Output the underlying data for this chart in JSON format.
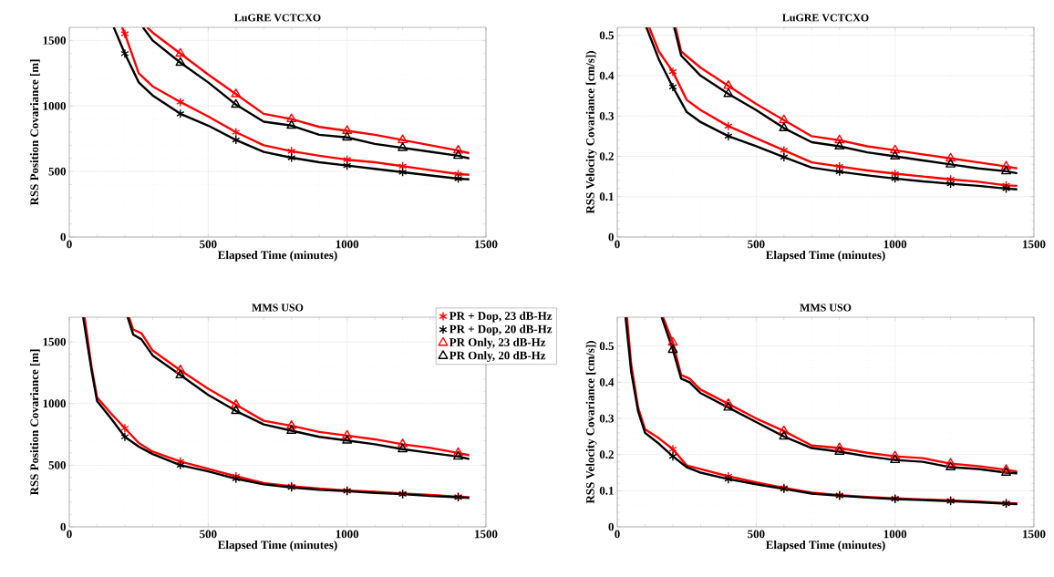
{
  "chart_data": [
    {
      "type": "line",
      "title": "LuGRE VCTCXO",
      "xlabel": "Elapsed Time (minutes)",
      "ylabel": "RSS Position Covariance [m]",
      "xlim": [
        0,
        1500
      ],
      "xticks": [
        0,
        500,
        1000,
        1500
      ],
      "ylim": [
        0,
        1600
      ],
      "yticks": [
        0,
        500,
        1000,
        1500
      ],
      "grid": true,
      "line_style": "solid",
      "series": [
        {
          "color": "#ff0000",
          "x": [
            190,
            200,
            250,
            300,
            400,
            500,
            600,
            700,
            800,
            900,
            1000,
            1100,
            1200,
            1300,
            1400,
            1440
          ],
          "values": [
            1600,
            1550,
            1250,
            1150,
            1030,
            920,
            800,
            700,
            655,
            620,
            590,
            570,
            540,
            510,
            480,
            475
          ]
        },
        {
          "color": "#000000",
          "x": [
            160,
            200,
            250,
            300,
            400,
            500,
            600,
            700,
            800,
            900,
            1000,
            1100,
            1200,
            1300,
            1400,
            1440
          ],
          "values": [
            1600,
            1400,
            1180,
            1080,
            940,
            850,
            740,
            650,
            605,
            570,
            545,
            520,
            495,
            470,
            445,
            440
          ]
        },
        {
          "color": "#ff0000",
          "x": [
            280,
            300,
            400,
            500,
            600,
            700,
            800,
            900,
            1000,
            1100,
            1200,
            1300,
            1400,
            1440
          ],
          "values": [
            1600,
            1560,
            1400,
            1240,
            1090,
            940,
            900,
            840,
            810,
            780,
            740,
            700,
            660,
            640
          ]
        },
        {
          "color": "#000000",
          "x": [
            265,
            300,
            400,
            500,
            600,
            700,
            800,
            900,
            1000,
            1100,
            1200,
            1300,
            1400,
            1440
          ],
          "values": [
            1600,
            1500,
            1330,
            1180,
            1010,
            880,
            850,
            780,
            760,
            710,
            680,
            650,
            620,
            600
          ]
        },
        {
          "type": "scatter",
          "color": "#ff0000",
          "marker": "cross",
          "x": [
            200,
            400,
            600,
            800,
            1000,
            1200,
            1400
          ],
          "values": [
            1550,
            1030,
            800,
            655,
            590,
            540,
            480
          ]
        },
        {
          "type": "scatter",
          "color": "#000000",
          "marker": "cross",
          "x": [
            200,
            400,
            600,
            800,
            1000,
            1200,
            1400
          ],
          "values": [
            1400,
            940,
            740,
            605,
            545,
            495,
            445
          ]
        },
        {
          "type": "scatter",
          "color": "#ff0000",
          "marker": "triangle",
          "x": [
            400,
            600,
            800,
            1000,
            1200,
            1400
          ],
          "values": [
            1400,
            1090,
            900,
            810,
            740,
            660
          ]
        },
        {
          "type": "scatter",
          "color": "#000000",
          "marker": "triangle",
          "x": [
            400,
            600,
            800,
            1000,
            1200,
            1400
          ],
          "values": [
            1330,
            1010,
            850,
            760,
            680,
            620
          ]
        }
      ]
    },
    {
      "type": "line",
      "title": "LuGRE VCTCXO",
      "xlabel": "Elapsed Time (minutes)",
      "ylabel": "RSS Velocity Covariance [cm/s])",
      "xlim": [
        0,
        1500
      ],
      "xticks": [
        0,
        500,
        1000,
        1500
      ],
      "ylim": [
        0,
        0.52
      ],
      "yticks": [
        0,
        0.1,
        0.2,
        0.3,
        0.4,
        0.5
      ],
      "grid": true,
      "line_style": "solid",
      "series": [
        {
          "color": "#ff0000",
          "x": [
            115,
            150,
            200,
            250,
            300,
            400,
            500,
            600,
            700,
            800,
            900,
            1000,
            1100,
            1200,
            1300,
            1400,
            1440
          ],
          "values": [
            0.52,
            0.46,
            0.41,
            0.34,
            0.315,
            0.275,
            0.245,
            0.215,
            0.185,
            0.175,
            0.165,
            0.157,
            0.15,
            0.143,
            0.137,
            0.128,
            0.127
          ]
        },
        {
          "color": "#000000",
          "x": [
            105,
            150,
            200,
            250,
            300,
            400,
            500,
            600,
            700,
            800,
            900,
            1000,
            1100,
            1200,
            1300,
            1400,
            1440
          ],
          "values": [
            0.52,
            0.44,
            0.372,
            0.31,
            0.285,
            0.25,
            0.225,
            0.198,
            0.172,
            0.162,
            0.153,
            0.145,
            0.138,
            0.132,
            0.127,
            0.12,
            0.118
          ]
        },
        {
          "color": "#ff0000",
          "x": [
            210,
            230,
            300,
            400,
            500,
            600,
            700,
            800,
            900,
            1000,
            1100,
            1200,
            1300,
            1400,
            1440
          ],
          "values": [
            0.52,
            0.46,
            0.42,
            0.375,
            0.33,
            0.29,
            0.25,
            0.24,
            0.225,
            0.215,
            0.205,
            0.195,
            0.185,
            0.175,
            0.17
          ]
        },
        {
          "color": "#000000",
          "x": [
            205,
            230,
            300,
            400,
            500,
            600,
            700,
            800,
            900,
            1000,
            1100,
            1200,
            1300,
            1400,
            1440
          ],
          "values": [
            0.52,
            0.45,
            0.4,
            0.355,
            0.315,
            0.27,
            0.235,
            0.225,
            0.21,
            0.2,
            0.19,
            0.18,
            0.17,
            0.163,
            0.158
          ]
        },
        {
          "type": "scatter",
          "color": "#ff0000",
          "marker": "cross",
          "x": [
            200,
            400,
            600,
            800,
            1000,
            1200,
            1400
          ],
          "values": [
            0.41,
            0.275,
            0.215,
            0.175,
            0.157,
            0.143,
            0.128
          ]
        },
        {
          "type": "scatter",
          "color": "#000000",
          "marker": "cross",
          "x": [
            200,
            400,
            600,
            800,
            1000,
            1200,
            1400
          ],
          "values": [
            0.372,
            0.25,
            0.198,
            0.162,
            0.145,
            0.132,
            0.12
          ]
        },
        {
          "type": "scatter",
          "color": "#ff0000",
          "marker": "triangle",
          "x": [
            400,
            600,
            800,
            1000,
            1200,
            1400
          ],
          "values": [
            0.375,
            0.29,
            0.24,
            0.215,
            0.195,
            0.175
          ]
        },
        {
          "type": "scatter",
          "color": "#000000",
          "marker": "triangle",
          "x": [
            400,
            600,
            800,
            1000,
            1200,
            1400
          ],
          "values": [
            0.355,
            0.27,
            0.225,
            0.2,
            0.18,
            0.163
          ]
        }
      ]
    },
    {
      "type": "line",
      "title": "MMS USO",
      "xlabel": "Elapsed Time (minutes)",
      "ylabel": "RSS Position Covariance [m]",
      "xlim": [
        0,
        1500
      ],
      "xticks": [
        0,
        500,
        1000,
        1500
      ],
      "ylim": [
        0,
        1700
      ],
      "yticks": [
        0,
        500,
        1000,
        1500
      ],
      "grid": true,
      "line_style": "solid",
      "legend": "top right",
      "series": [
        {
          "color": "#ff0000",
          "x": [
            55,
            80,
            100,
            150,
            200,
            250,
            300,
            400,
            500,
            600,
            700,
            800,
            900,
            1000,
            1100,
            1200,
            1300,
            1400,
            1440
          ],
          "values": [
            1700,
            1300,
            1050,
            920,
            800,
            680,
            610,
            530,
            470,
            410,
            355,
            330,
            310,
            295,
            285,
            270,
            260,
            245,
            240
          ]
        },
        {
          "color": "#000000",
          "x": [
            50,
            80,
            100,
            150,
            200,
            250,
            300,
            400,
            500,
            600,
            700,
            800,
            900,
            1000,
            1100,
            1200,
            1300,
            1400,
            1440
          ],
          "values": [
            1700,
            1270,
            1020,
            880,
            730,
            650,
            590,
            500,
            450,
            390,
            345,
            320,
            300,
            290,
            275,
            265,
            250,
            240,
            235
          ]
        },
        {
          "color": "#ff0000",
          "x": [
            215,
            230,
            260,
            300,
            400,
            500,
            600,
            700,
            800,
            900,
            1000,
            1100,
            1200,
            1300,
            1400,
            1440
          ],
          "values": [
            1700,
            1600,
            1570,
            1430,
            1270,
            1120,
            990,
            860,
            820,
            770,
            740,
            710,
            670,
            640,
            600,
            580
          ]
        },
        {
          "color": "#000000",
          "x": [
            210,
            230,
            260,
            300,
            400,
            500,
            600,
            700,
            800,
            900,
            1000,
            1100,
            1200,
            1300,
            1400,
            1440
          ],
          "values": [
            1700,
            1560,
            1520,
            1390,
            1230,
            1070,
            940,
            830,
            780,
            730,
            700,
            670,
            630,
            600,
            570,
            550
          ]
        },
        {
          "type": "scatter",
          "name": "PR + Dop, 23 dB-Hz",
          "color": "#ff0000",
          "marker": "cross",
          "x": [
            200,
            400,
            600,
            800,
            1000,
            1200,
            1400
          ],
          "values": [
            800,
            530,
            410,
            330,
            295,
            270,
            245
          ]
        },
        {
          "type": "scatter",
          "name": "PR + Dop, 20 dB-Hz",
          "color": "#000000",
          "marker": "cross",
          "x": [
            200,
            400,
            600,
            800,
            1000,
            1200,
            1400
          ],
          "values": [
            730,
            500,
            390,
            320,
            290,
            265,
            240
          ]
        },
        {
          "type": "scatter",
          "name": "PR Only, 23 dB-Hz",
          "color": "#ff0000",
          "marker": "triangle",
          "x": [
            400,
            600,
            800,
            1000,
            1200,
            1400
          ],
          "values": [
            1270,
            990,
            820,
            740,
            670,
            600
          ]
        },
        {
          "type": "scatter",
          "name": "PR Only, 20 dB-Hz",
          "color": "#000000",
          "marker": "triangle",
          "x": [
            400,
            600,
            800,
            1000,
            1200,
            1400
          ],
          "values": [
            1230,
            940,
            780,
            700,
            630,
            570
          ]
        }
      ]
    },
    {
      "type": "line",
      "title": "MMS USO",
      "xlabel": "Elapsed Time (minutes)",
      "ylabel": "RSS Velocity Covariance [cm/s])",
      "xlim": [
        0,
        1500
      ],
      "xticks": [
        0,
        500,
        1000,
        1500
      ],
      "ylim": [
        0,
        0.58
      ],
      "yticks": [
        0,
        0.1,
        0.2,
        0.3,
        0.4,
        0.5
      ],
      "grid": true,
      "line_style": "solid",
      "series": [
        {
          "color": "#ff0000",
          "x": [
            35,
            50,
            75,
            100,
            150,
            200,
            250,
            300,
            400,
            500,
            600,
            700,
            800,
            900,
            1000,
            1100,
            1200,
            1300,
            1400,
            1440
          ],
          "values": [
            0.58,
            0.45,
            0.33,
            0.27,
            0.245,
            0.215,
            0.17,
            0.16,
            0.14,
            0.123,
            0.108,
            0.095,
            0.088,
            0.083,
            0.079,
            0.076,
            0.073,
            0.07,
            0.066,
            0.065
          ]
        },
        {
          "color": "#000000",
          "x": [
            30,
            50,
            75,
            100,
            150,
            200,
            250,
            300,
            400,
            500,
            600,
            700,
            800,
            900,
            1000,
            1100,
            1200,
            1300,
            1400,
            1440
          ],
          "values": [
            0.58,
            0.43,
            0.32,
            0.26,
            0.23,
            0.195,
            0.165,
            0.15,
            0.132,
            0.118,
            0.105,
            0.092,
            0.086,
            0.081,
            0.077,
            0.074,
            0.071,
            0.068,
            0.064,
            0.063
          ]
        },
        {
          "color": "#ff0000",
          "x": [
            165,
            200,
            230,
            260,
            300,
            400,
            500,
            600,
            700,
            800,
            900,
            1000,
            1100,
            1200,
            1300,
            1400,
            1440
          ],
          "values": [
            0.58,
            0.51,
            0.42,
            0.41,
            0.38,
            0.34,
            0.3,
            0.265,
            0.225,
            0.218,
            0.205,
            0.195,
            0.19,
            0.175,
            0.168,
            0.158,
            0.153
          ]
        },
        {
          "color": "#000000",
          "x": [
            160,
            200,
            230,
            260,
            300,
            400,
            500,
            600,
            700,
            800,
            900,
            1000,
            1100,
            1200,
            1300,
            1400,
            1440
          ],
          "values": [
            0.58,
            0.49,
            0.41,
            0.4,
            0.37,
            0.33,
            0.29,
            0.25,
            0.218,
            0.208,
            0.195,
            0.185,
            0.18,
            0.165,
            0.16,
            0.15,
            0.148
          ]
        },
        {
          "type": "scatter",
          "color": "#ff0000",
          "marker": "cross",
          "x": [
            200,
            400,
            600,
            800,
            1000,
            1200,
            1400
          ],
          "values": [
            0.215,
            0.14,
            0.108,
            0.088,
            0.079,
            0.073,
            0.066
          ]
        },
        {
          "type": "scatter",
          "color": "#000000",
          "marker": "cross",
          "x": [
            200,
            400,
            600,
            800,
            1000,
            1200,
            1400
          ],
          "values": [
            0.195,
            0.132,
            0.105,
            0.086,
            0.077,
            0.071,
            0.064
          ]
        },
        {
          "type": "scatter",
          "color": "#ff0000",
          "marker": "triangle",
          "x": [
            200,
            400,
            600,
            800,
            1000,
            1200,
            1400
          ],
          "values": [
            0.51,
            0.34,
            0.265,
            0.218,
            0.195,
            0.175,
            0.158
          ]
        },
        {
          "type": "scatter",
          "color": "#000000",
          "marker": "triangle",
          "x": [
            200,
            400,
            600,
            800,
            1000,
            1200,
            1400
          ],
          "values": [
            0.49,
            0.33,
            0.25,
            0.208,
            0.185,
            0.165,
            0.15
          ]
        }
      ]
    }
  ]
}
